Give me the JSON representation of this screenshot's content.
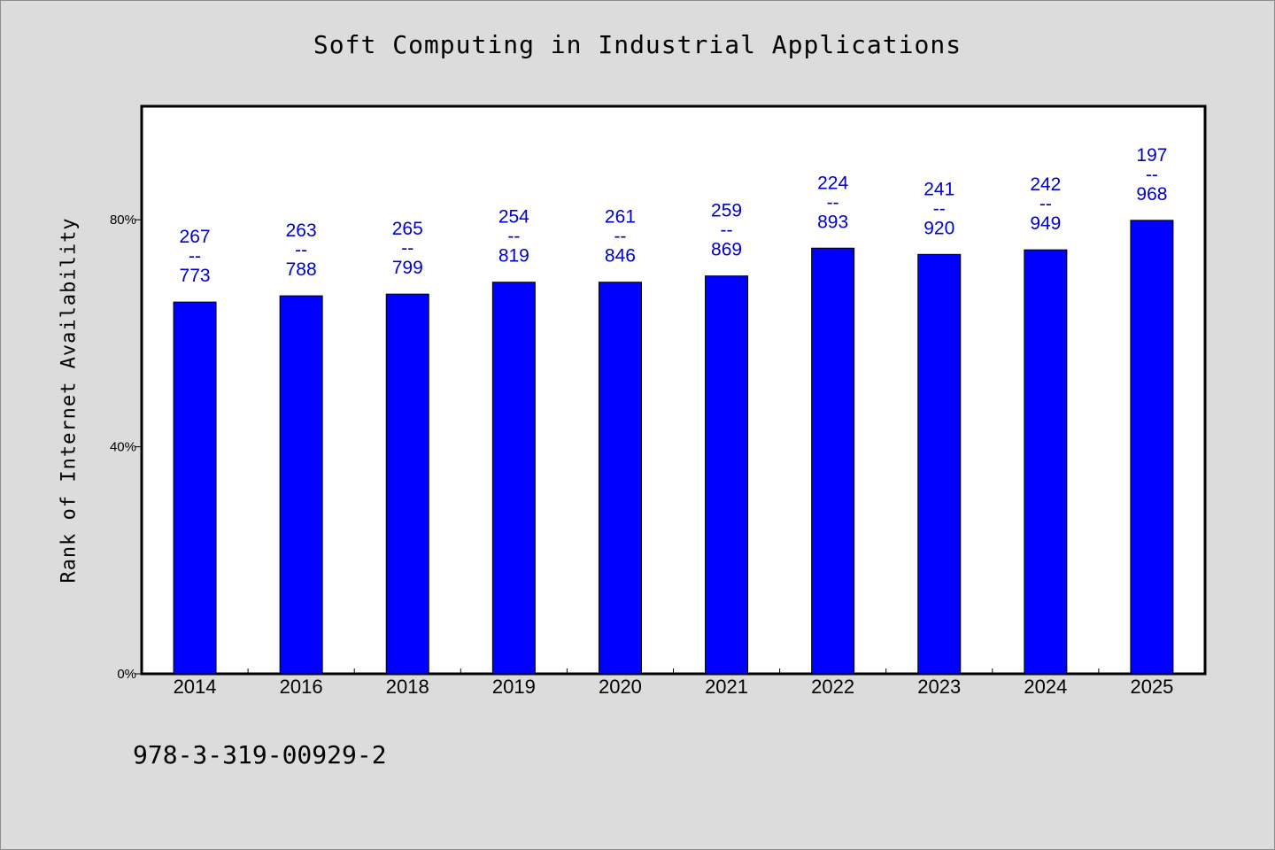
{
  "chart_data": {
    "type": "bar",
    "title": "Soft Computing in Industrial Applications",
    "ylabel": "Rank of Internet Availability",
    "xlabel": "",
    "categories": [
      "2014",
      "2016",
      "2018",
      "2019",
      "2020",
      "2021",
      "2022",
      "2023",
      "2024",
      "2025"
    ],
    "values": [
      65.5,
      66.6,
      66.9,
      69.0,
      69.0,
      70.1,
      75.0,
      73.9,
      74.7,
      79.9
    ],
    "ranks": [
      "267",
      "263",
      "265",
      "254",
      "261",
      "259",
      "224",
      "241",
      "242",
      "197"
    ],
    "totals": [
      "773",
      "788",
      "799",
      "819",
      "846",
      "869",
      "893",
      "920",
      "949",
      "968"
    ],
    "label_separator": "--",
    "yticks": [
      0,
      40,
      80
    ],
    "ytick_labels": [
      "0%",
      "40%",
      "80%"
    ],
    "ylim": [
      0,
      100
    ],
    "grid": false,
    "legend": "none",
    "bar_color": "#0000ff",
    "label_color": "#0000cc"
  },
  "footer": {
    "code": "978-3-319-00929-2"
  }
}
